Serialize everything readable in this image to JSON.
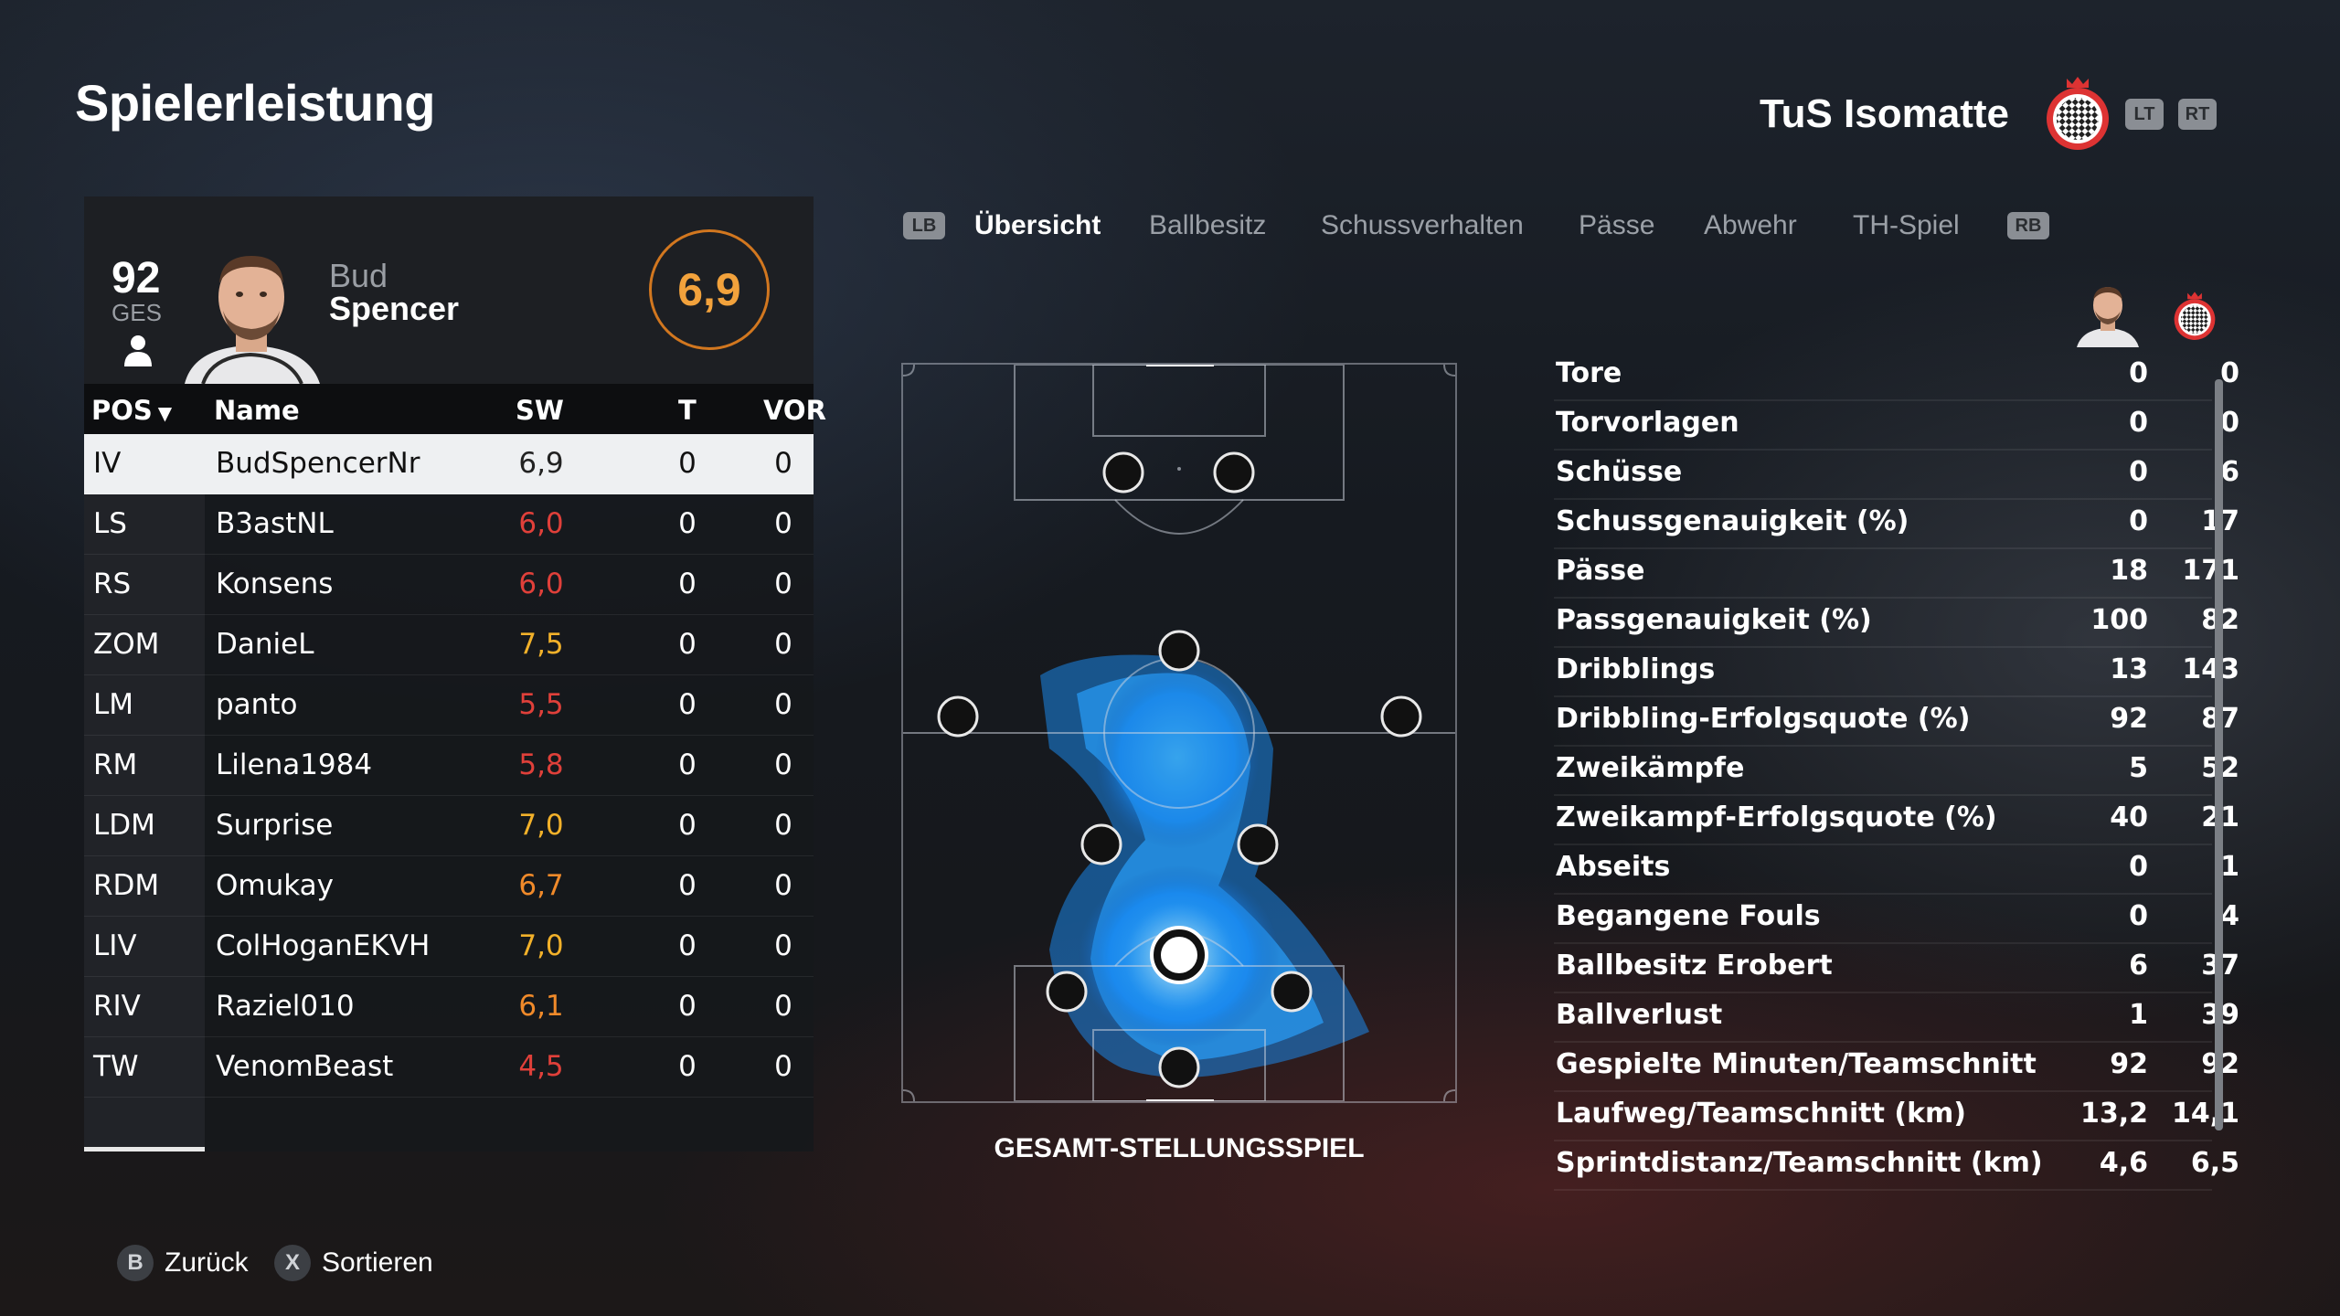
{
  "header": {
    "title": "Spielerleistung",
    "team": "TuS Isomatte",
    "lt": "LT",
    "rt": "RT"
  },
  "player": {
    "ges_value": "92",
    "ges_label": "GES",
    "first_name": "Bud",
    "last_name": "Spencer",
    "rating": "6,9"
  },
  "table": {
    "headers": {
      "pos": "POS",
      "name": "Name",
      "sw": "SW",
      "t": "T",
      "vor": "VOR"
    },
    "rows": [
      {
        "pos": "IV",
        "name": "BudSpencerNr",
        "sw": "6,9",
        "t": "0",
        "vor": "0",
        "color": "#222222"
      },
      {
        "pos": "LS",
        "name": "B3astNL",
        "sw": "6,0",
        "t": "0",
        "vor": "0",
        "color": "#e0403a"
      },
      {
        "pos": "RS",
        "name": "Konsens",
        "sw": "6,0",
        "t": "0",
        "vor": "0",
        "color": "#e0403a"
      },
      {
        "pos": "ZOM",
        "name": "DanieL",
        "sw": "7,5",
        "t": "0",
        "vor": "0",
        "color": "#f2b12a"
      },
      {
        "pos": "LM",
        "name": "panto",
        "sw": "5,5",
        "t": "0",
        "vor": "0",
        "color": "#e0403a"
      },
      {
        "pos": "RM",
        "name": "Lilena1984",
        "sw": "5,8",
        "t": "0",
        "vor": "0",
        "color": "#e0403a"
      },
      {
        "pos": "LDM",
        "name": "Surprise",
        "sw": "7,0",
        "t": "0",
        "vor": "0",
        "color": "#f2b12a"
      },
      {
        "pos": "RDM",
        "name": "Omukay",
        "sw": "6,7",
        "t": "0",
        "vor": "0",
        "color": "#f08a2a"
      },
      {
        "pos": "LIV",
        "name": "ColHoganEKVH",
        "sw": "7,0",
        "t": "0",
        "vor": "0",
        "color": "#f2b12a"
      },
      {
        "pos": "RIV",
        "name": "Raziel010",
        "sw": "6,1",
        "t": "0",
        "vor": "0",
        "color": "#f08a2a"
      },
      {
        "pos": "TW",
        "name": "VenomBeast",
        "sw": "4,5",
        "t": "0",
        "vor": "0",
        "color": "#e0403a"
      }
    ]
  },
  "tabs": {
    "lb": "LB",
    "rb": "RB",
    "items": [
      "Übersicht",
      "Ballbesitz",
      "Schussverhalten",
      "Pässe",
      "Abwehr",
      "TH-Spiel"
    ]
  },
  "pitch": {
    "label": "GESAMT-STELLUNGSSPIEL"
  },
  "stats": [
    {
      "label": "Tore",
      "player": "0",
      "team": "0"
    },
    {
      "label": "Torvorlagen",
      "player": "0",
      "team": "0"
    },
    {
      "label": "Schüsse",
      "player": "0",
      "team": "6"
    },
    {
      "label": "Schussgenauigkeit (%)",
      "player": "0",
      "team": "17"
    },
    {
      "label": "Pässe",
      "player": "18",
      "team": "171"
    },
    {
      "label": "Passgenauigkeit (%)",
      "player": "100",
      "team": "82"
    },
    {
      "label": "Dribblings",
      "player": "13",
      "team": "143"
    },
    {
      "label": "Dribbling-Erfolgsquote (%)",
      "player": "92",
      "team": "87"
    },
    {
      "label": "Zweikämpfe",
      "player": "5",
      "team": "52"
    },
    {
      "label": "Zweikampf-Erfolgsquote (%)",
      "player": "40",
      "team": "21"
    },
    {
      "label": "Abseits",
      "player": "0",
      "team": "1"
    },
    {
      "label": "Begangene Fouls",
      "player": "0",
      "team": "4"
    },
    {
      "label": "Ballbesitz Erobert",
      "player": "6",
      "team": "37"
    },
    {
      "label": "Ballverlust",
      "player": "1",
      "team": "39"
    },
    {
      "label": "Gespielte Minuten/Teamschnitt",
      "player": "92",
      "team": "92"
    },
    {
      "label": "Laufweg/Teamschnitt (km)",
      "player": "13,2",
      "team": "14,1"
    },
    {
      "label": "Sprintdistanz/Teamschnitt (km)",
      "player": "4,6",
      "team": "6,5"
    }
  ],
  "footer": {
    "back_btn": "B",
    "back_label": "Zurück",
    "sort_btn": "X",
    "sort_label": "Sortieren"
  },
  "colors": {
    "accent_orange": "#f2a23c",
    "heatmap_blue": "#1f9bff",
    "selected_row": "#eef0f2"
  }
}
